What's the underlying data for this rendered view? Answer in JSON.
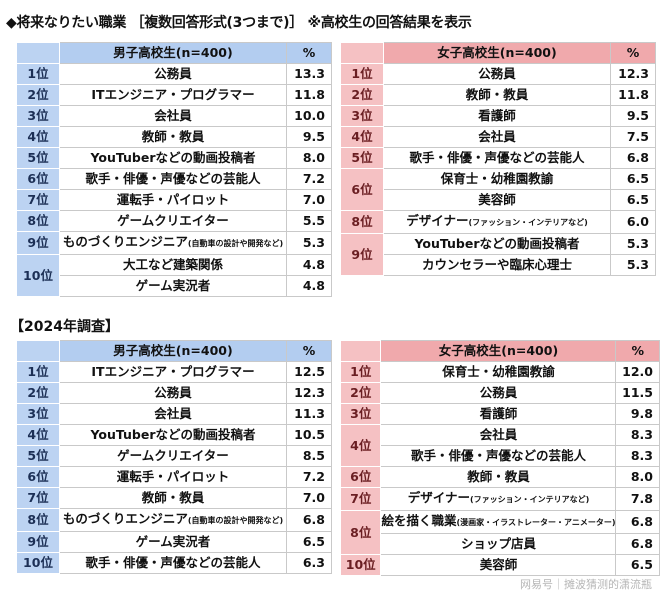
{
  "title": "◆将来なりたい職業 ［複数回答形式(3つまで)］ ※高校生の回答結果を表示",
  "subtitle": "【2024年調査】",
  "watermark": "网易号｜摊波猜测的潇流瓶",
  "colors": {
    "boys_header": "#b3cdf0",
    "boys_rank": "#bcd3f2",
    "girls_header": "#f0a9ac",
    "girls_rank": "#f5c1c3"
  },
  "tables": [
    {
      "id": "t1",
      "theme": "blue",
      "header": "男子高校生(n=400)",
      "pct_header": "%",
      "rows": [
        {
          "rank": "1位",
          "span": 1,
          "name": "公務員",
          "pct": "13.3"
        },
        {
          "rank": "2位",
          "span": 1,
          "name": "ITエンジニア・プログラマー",
          "pct": "11.8"
        },
        {
          "rank": "3位",
          "span": 1,
          "name": "会社員",
          "pct": "10.0"
        },
        {
          "rank": "4位",
          "span": 1,
          "name": "教師・教員",
          "pct": "9.5"
        },
        {
          "rank": "5位",
          "span": 1,
          "name": "YouTuberなどの動画投稿者",
          "pct": "8.0"
        },
        {
          "rank": "6位",
          "span": 1,
          "name": "歌手・俳優・声優などの芸能人",
          "pct": "7.2"
        },
        {
          "rank": "7位",
          "span": 1,
          "name": "運転手・パイロット",
          "pct": "7.0"
        },
        {
          "rank": "8位",
          "span": 1,
          "name": "ゲームクリエイター",
          "pct": "5.5"
        },
        {
          "rank": "9位",
          "span": 1,
          "name": "ものづくりエンジニア",
          "note": "(自動車の設計や開発など)",
          "pct": "5.3"
        },
        {
          "rank": "10位",
          "span": 2,
          "name": "大工など建築関係",
          "pct": "4.8"
        },
        {
          "name": "ゲーム実況者",
          "pct": "4.8"
        }
      ]
    },
    {
      "id": "t2",
      "theme": "pink",
      "header": "女子高校生(n=400)",
      "pct_header": "%",
      "rows": [
        {
          "rank": "1位",
          "span": 1,
          "name": "公務員",
          "pct": "12.3"
        },
        {
          "rank": "2位",
          "span": 1,
          "name": "教師・教員",
          "pct": "11.8"
        },
        {
          "rank": "3位",
          "span": 1,
          "name": "看護師",
          "pct": "9.5"
        },
        {
          "rank": "4位",
          "span": 1,
          "name": "会社員",
          "pct": "7.5"
        },
        {
          "rank": "5位",
          "span": 1,
          "name": "歌手・俳優・声優などの芸能人",
          "pct": "6.8"
        },
        {
          "rank": "6位",
          "span": 2,
          "name": "保育士・幼稚園教諭",
          "pct": "6.5"
        },
        {
          "name": "美容師",
          "pct": "6.5"
        },
        {
          "rank": "8位",
          "span": 1,
          "name": "デザイナー",
          "note": "(ファッション・インテリアなど)",
          "pct": "6.0"
        },
        {
          "rank": "9位",
          "span": 2,
          "name": "YouTuberなどの動画投稿者",
          "pct": "5.3"
        },
        {
          "name": "カウンセラーや臨床心理士",
          "pct": "5.3"
        }
      ]
    },
    {
      "id": "t3",
      "theme": "blue",
      "header": "男子高校生(n=400)",
      "pct_header": "%",
      "rows": [
        {
          "rank": "1位",
          "span": 1,
          "name": "ITエンジニア・プログラマー",
          "pct": "12.5"
        },
        {
          "rank": "2位",
          "span": 1,
          "name": "公務員",
          "pct": "12.3"
        },
        {
          "rank": "3位",
          "span": 1,
          "name": "会社員",
          "pct": "11.3"
        },
        {
          "rank": "4位",
          "span": 1,
          "name": "YouTuberなどの動画投稿者",
          "pct": "10.5"
        },
        {
          "rank": "5位",
          "span": 1,
          "name": "ゲームクリエイター",
          "pct": "8.5"
        },
        {
          "rank": "6位",
          "span": 1,
          "name": "運転手・パイロット",
          "pct": "7.2"
        },
        {
          "rank": "7位",
          "span": 1,
          "name": "教師・教員",
          "pct": "7.0"
        },
        {
          "rank": "8位",
          "span": 1,
          "name": "ものづくりエンジニア",
          "note": "(自動車の設計や開発など)",
          "pct": "6.8"
        },
        {
          "rank": "9位",
          "span": 1,
          "name": "ゲーム実況者",
          "pct": "6.5"
        },
        {
          "rank": "10位",
          "span": 1,
          "name": "歌手・俳優・声優などの芸能人",
          "pct": "6.3"
        }
      ]
    },
    {
      "id": "t4",
      "theme": "pink",
      "header": "女子高校生(n=400)",
      "pct_header": "%",
      "rows": [
        {
          "rank": "1位",
          "span": 1,
          "name": "保育士・幼稚園教諭",
          "pct": "12.0"
        },
        {
          "rank": "2位",
          "span": 1,
          "name": "公務員",
          "pct": "11.5"
        },
        {
          "rank": "3位",
          "span": 1,
          "name": "看護師",
          "pct": "9.8"
        },
        {
          "rank": "4位",
          "span": 2,
          "name": "会社員",
          "pct": "8.3"
        },
        {
          "name": "歌手・俳優・声優などの芸能人",
          "pct": "8.3"
        },
        {
          "rank": "6位",
          "span": 1,
          "name": "教師・教員",
          "pct": "8.0"
        },
        {
          "rank": "7位",
          "span": 1,
          "name": "デザイナー",
          "note": "(ファッション・インテリアなど)",
          "pct": "7.8"
        },
        {
          "rank": "8位",
          "span": 2,
          "name": "絵を描く職業",
          "note": "(漫画家・イラストレーター・アニメーター)",
          "pct": "6.8"
        },
        {
          "name": "ショップ店員",
          "pct": "6.8"
        },
        {
          "rank": "10位",
          "span": 1,
          "name": "美容師",
          "pct": "6.5"
        }
      ]
    }
  ]
}
